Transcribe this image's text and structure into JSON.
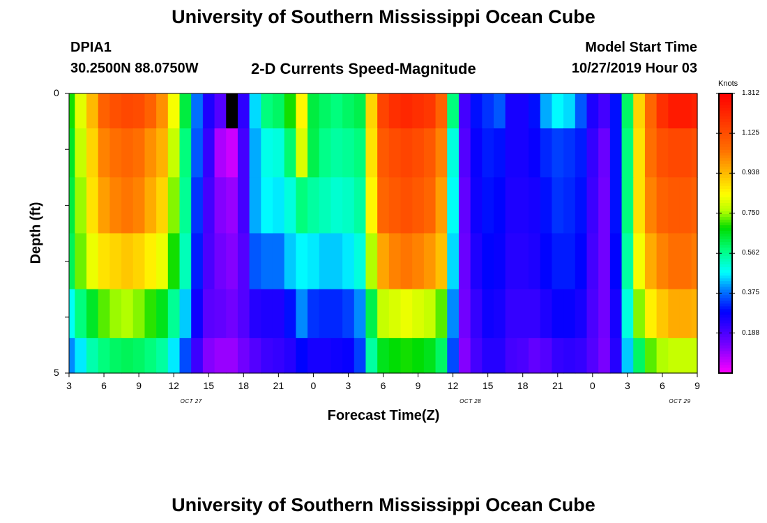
{
  "header": {
    "title": "University of Southern Mississippi Ocean Cube",
    "footer_title": "University of Southern Mississippi Ocean Cube",
    "station_id": "DPIA1",
    "coordinates": "30.2500N 88.0750W",
    "subtitle": "2-D Currents Speed-Magnitude",
    "model_start_label": "Model Start Time",
    "model_start_value": "10/27/2019 Hour 03"
  },
  "chart_data": {
    "type": "heatmap",
    "title": "2-D Currents Speed-Magnitude",
    "xlabel": "Forecast Time(Z)",
    "ylabel": "Depth (ft)",
    "xlim": [
      3,
      57
    ],
    "ylim": [
      0,
      5
    ],
    "y_tick_labels": [
      "0",
      "5"
    ],
    "x_tick_labels": [
      "3",
      "6",
      "9",
      "12",
      "15",
      "18",
      "21",
      "0",
      "3",
      "6",
      "9",
      "12",
      "15",
      "18",
      "21",
      "0",
      "3",
      "6",
      "9"
    ],
    "date_labels": [
      "OCT 27",
      "OCT 28",
      "OCT 29"
    ],
    "colorbar": {
      "label": "Knots",
      "min": 0,
      "max": 1.312,
      "tick_labels": [
        "1.312",
        "1.125",
        "0.938",
        "0.750",
        "0.562",
        "0.375",
        "0.188"
      ]
    },
    "colors": {
      "missing": "#000000"
    },
    "depth_bins": [
      0.25,
      1.0,
      2.0,
      3.0,
      4.0,
      4.75
    ],
    "x_hours": [
      3,
      4,
      5,
      6,
      7,
      8,
      9,
      10,
      11,
      12,
      13,
      14,
      15,
      16,
      17,
      18,
      19,
      20,
      21,
      22,
      23,
      24,
      25,
      26,
      27,
      28,
      29,
      30,
      31,
      32,
      33,
      34,
      35,
      36,
      37,
      38,
      39,
      40,
      41,
      42,
      43,
      44,
      45,
      46,
      47,
      48,
      49,
      50,
      51,
      52,
      53,
      54,
      55,
      56,
      57
    ],
    "values": [
      [
        0.69,
        0.81,
        0.94,
        1.08,
        1.12,
        1.14,
        1.13,
        1.08,
        1.0,
        0.83,
        0.63,
        0.38,
        0.25,
        0.18,
        null,
        0.23,
        0.45,
        0.58,
        0.6,
        0.69,
        0.85,
        0.63,
        0.6,
        0.58,
        0.6,
        0.62,
        0.9,
        1.15,
        1.2,
        1.22,
        1.2,
        1.18,
        1.08,
        0.58,
        0.2,
        0.3,
        0.33,
        0.36,
        0.26,
        0.26,
        0.3,
        0.42,
        0.47,
        0.45,
        0.36,
        0.25,
        0.2,
        0.3,
        0.6,
        0.9,
        1.07,
        1.2,
        1.25,
        1.25,
        1.23
      ],
      [
        0.65,
        0.78,
        0.9,
        1.02,
        1.05,
        1.07,
        1.05,
        1.0,
        0.95,
        0.78,
        0.58,
        0.36,
        0.22,
        0.08,
        0.05,
        0.2,
        0.42,
        0.49,
        0.5,
        0.59,
        0.8,
        0.62,
        0.57,
        0.55,
        0.56,
        0.58,
        0.88,
        1.1,
        1.13,
        1.15,
        1.13,
        1.1,
        1.02,
        0.5,
        0.18,
        0.28,
        0.31,
        0.3,
        0.26,
        0.26,
        0.28,
        0.32,
        0.34,
        0.33,
        0.31,
        0.22,
        0.15,
        0.3,
        0.58,
        0.88,
        1.05,
        1.12,
        1.14,
        1.14,
        1.12
      ],
      [
        0.63,
        0.75,
        0.88,
        0.98,
        1.02,
        1.04,
        1.02,
        0.96,
        0.9,
        0.74,
        0.56,
        0.33,
        0.2,
        0.12,
        0.1,
        0.2,
        0.42,
        0.47,
        0.46,
        0.5,
        0.58,
        0.55,
        0.53,
        0.51,
        0.52,
        0.55,
        0.85,
        1.07,
        1.1,
        1.12,
        1.1,
        1.07,
        0.98,
        0.48,
        0.16,
        0.27,
        0.3,
        0.29,
        0.25,
        0.25,
        0.26,
        0.3,
        0.33,
        0.32,
        0.3,
        0.21,
        0.14,
        0.3,
        0.58,
        0.88,
        1.02,
        1.08,
        1.1,
        1.1,
        1.08
      ],
      [
        0.61,
        0.73,
        0.82,
        0.88,
        0.9,
        0.92,
        0.9,
        0.86,
        0.82,
        0.69,
        0.53,
        0.31,
        0.19,
        0.14,
        0.12,
        0.18,
        0.36,
        0.38,
        0.38,
        0.44,
        0.47,
        0.46,
        0.44,
        0.44,
        0.46,
        0.5,
        0.76,
        0.97,
        1.02,
        1.04,
        1.02,
        0.99,
        0.93,
        0.45,
        0.15,
        0.25,
        0.29,
        0.28,
        0.24,
        0.24,
        0.25,
        0.29,
        0.31,
        0.31,
        0.29,
        0.2,
        0.14,
        0.29,
        0.55,
        0.83,
        0.96,
        1.02,
        1.05,
        1.05,
        1.03
      ],
      [
        0.48,
        0.58,
        0.65,
        0.72,
        0.75,
        0.76,
        0.74,
        0.7,
        0.66,
        0.56,
        0.44,
        0.27,
        0.17,
        0.16,
        0.14,
        0.18,
        0.24,
        0.25,
        0.25,
        0.3,
        0.4,
        0.33,
        0.32,
        0.32,
        0.34,
        0.4,
        0.62,
        0.78,
        0.8,
        0.82,
        0.8,
        0.78,
        0.72,
        0.4,
        0.14,
        0.22,
        0.27,
        0.26,
        0.22,
        0.22,
        0.22,
        0.25,
        0.28,
        0.28,
        0.26,
        0.19,
        0.14,
        0.26,
        0.5,
        0.74,
        0.86,
        0.92,
        0.96,
        0.96,
        0.95
      ],
      [
        0.4,
        0.46,
        0.54,
        0.58,
        0.6,
        0.61,
        0.6,
        0.58,
        0.55,
        0.46,
        0.35,
        0.21,
        0.12,
        0.1,
        0.1,
        0.14,
        0.18,
        0.21,
        0.22,
        0.24,
        0.29,
        0.26,
        0.26,
        0.27,
        0.28,
        0.34,
        0.55,
        0.66,
        0.68,
        0.69,
        0.68,
        0.66,
        0.6,
        0.35,
        0.12,
        0.2,
        0.24,
        0.24,
        0.2,
        0.19,
        0.16,
        0.18,
        0.22,
        0.23,
        0.22,
        0.18,
        0.13,
        0.24,
        0.44,
        0.6,
        0.72,
        0.76,
        0.78,
        0.78,
        0.78
      ]
    ]
  }
}
